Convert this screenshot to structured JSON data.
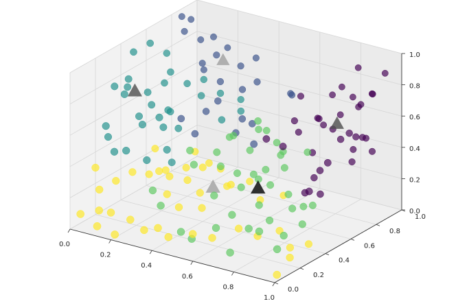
{
  "chart_data": {
    "type": "scatter",
    "title": "",
    "xlabel": "",
    "ylabel": "",
    "zlabel": "",
    "xlim": [
      0,
      1
    ],
    "ylim": [
      0,
      1
    ],
    "zlim": [
      0,
      1
    ],
    "x_ticks": [
      "0.0",
      "0.2",
      "0.4",
      "0.6",
      "0.8",
      "1.0"
    ],
    "y_ticks": [
      "0.0",
      "0.2",
      "0.4",
      "0.6",
      "0.8",
      "1.0"
    ],
    "z_ticks": [
      "0.0",
      "0.2",
      "0.4",
      "0.6",
      "0.8",
      "1.0"
    ],
    "grid": true,
    "legend": "none",
    "colors": {
      "cluster_0": "#440154",
      "cluster_1": "#3b528b",
      "cluster_2": "#21918c",
      "cluster_3": "#5ec962",
      "cluster_4": "#fde725",
      "pane_floor": "#f0f0f0",
      "pane_wall_left": "#f2f2f2",
      "pane_wall_back": "#ebebeb",
      "grid": "#d6d6d6",
      "centroid_light": "#a0a0a0",
      "centroid_mid": "#4d4d4d",
      "centroid_dark": "#000000"
    },
    "centroids": [
      {
        "cluster": 0,
        "x": 0.92,
        "y": 0.62,
        "z": 0.7,
        "shade": "centroid_mid"
      },
      {
        "cluster": 1,
        "x": 0.22,
        "y": 0.85,
        "z": 0.76,
        "shade": "centroid_light"
      },
      {
        "cluster": 2,
        "x": 0.05,
        "y": 0.43,
        "z": 0.7,
        "shade": "centroid_mid"
      },
      {
        "cluster": 3,
        "x": 0.72,
        "y": 0.32,
        "z": 0.36,
        "shade": "centroid_dark"
      },
      {
        "cluster": 4,
        "x": 0.5,
        "y": 0.32,
        "z": 0.29,
        "shade": "centroid_light"
      }
    ],
    "series": [
      {
        "cluster": 0,
        "points": [
          [
            0.62,
            0.95,
            0.48
          ],
          [
            0.68,
            0.97,
            0.64
          ],
          [
            0.72,
            0.98,
            0.7
          ],
          [
            0.78,
            0.97,
            0.66
          ],
          [
            0.82,
            0.95,
            0.62
          ],
          [
            0.88,
            0.96,
            0.72
          ],
          [
            0.95,
            0.95,
            0.88
          ],
          [
            0.9,
            0.88,
            0.48
          ],
          [
            0.85,
            0.86,
            0.4
          ],
          [
            0.92,
            0.82,
            0.52
          ],
          [
            0.98,
            0.8,
            0.46
          ],
          [
            0.9,
            0.77,
            0.38
          ],
          [
            0.95,
            0.72,
            0.58
          ],
          [
            0.8,
            0.78,
            0.55
          ],
          [
            0.72,
            0.8,
            0.58
          ],
          [
            0.6,
            0.85,
            0.66
          ],
          [
            0.75,
            0.7,
            0.42
          ],
          [
            0.65,
            0.72,
            0.58
          ],
          [
            0.95,
            0.6,
            0.62
          ],
          [
            0.98,
            0.62,
            0.66
          ],
          [
            0.88,
            0.55,
            0.42
          ],
          [
            0.82,
            0.6,
            0.33
          ],
          [
            0.9,
            0.52,
            0.29
          ],
          [
            0.85,
            0.48,
            0.3
          ],
          [
            0.98,
            0.45,
            0.55
          ],
          [
            0.92,
            0.4,
            0.37
          ],
          [
            0.78,
            0.42,
            0.6
          ],
          [
            0.68,
            0.45,
            0.6
          ],
          [
            0.85,
            0.92,
            0.66
          ],
          [
            0.75,
            0.92,
            0.56
          ],
          [
            0.68,
            0.9,
            0.48
          ],
          [
            0.8,
            0.98,
            0.85
          ],
          [
            0.92,
            0.9,
            0.76
          ],
          [
            0.62,
            0.8,
            0.46
          ]
        ]
      },
      {
        "cluster": 1,
        "points": [
          [
            0.0,
            0.88,
            0.95
          ],
          [
            0.02,
            0.92,
            0.92
          ],
          [
            0.05,
            0.82,
            0.9
          ],
          [
            0.12,
            0.86,
            0.66
          ],
          [
            0.18,
            0.84,
            0.9
          ],
          [
            0.25,
            0.75,
            0.85
          ],
          [
            0.4,
            0.82,
            0.85
          ],
          [
            0.35,
            0.78,
            0.8
          ],
          [
            0.55,
            0.85,
            0.66
          ],
          [
            0.6,
            0.78,
            0.7
          ],
          [
            0.48,
            0.7,
            0.78
          ],
          [
            0.42,
            0.68,
            0.72
          ],
          [
            0.3,
            0.7,
            0.72
          ],
          [
            0.15,
            0.8,
            0.74
          ],
          [
            0.08,
            0.9,
            0.82
          ],
          [
            0.18,
            0.95,
            0.78
          ],
          [
            0.28,
            0.62,
            0.56
          ],
          [
            0.35,
            0.6,
            0.66
          ],
          [
            0.45,
            0.58,
            0.5
          ],
          [
            0.5,
            0.55,
            0.62
          ],
          [
            0.58,
            0.5,
            0.64
          ],
          [
            0.65,
            0.4,
            0.58
          ],
          [
            0.3,
            0.5,
            0.48
          ],
          [
            0.22,
            0.52,
            0.54
          ]
        ]
      },
      {
        "cluster": 2,
        "points": [
          [
            0.0,
            0.35,
            0.75
          ],
          [
            0.02,
            0.42,
            0.72
          ],
          [
            0.05,
            0.38,
            0.8
          ],
          [
            0.08,
            0.3,
            0.75
          ],
          [
            0.1,
            0.45,
            0.7
          ],
          [
            0.12,
            0.35,
            0.6
          ],
          [
            0.15,
            0.4,
            0.66
          ],
          [
            0.18,
            0.28,
            0.6
          ],
          [
            0.2,
            0.45,
            0.62
          ],
          [
            0.22,
            0.38,
            0.55
          ],
          [
            0.25,
            0.3,
            0.66
          ],
          [
            0.0,
            0.5,
            0.9
          ],
          [
            0.05,
            0.55,
            0.95
          ],
          [
            0.1,
            0.6,
            0.88
          ],
          [
            0.15,
            0.55,
            0.8
          ],
          [
            0.2,
            0.6,
            0.72
          ],
          [
            0.25,
            0.65,
            0.74
          ],
          [
            0.3,
            0.55,
            0.7
          ],
          [
            0.35,
            0.62,
            0.7
          ],
          [
            0.4,
            0.7,
            0.64
          ],
          [
            0.02,
            0.25,
            0.55
          ],
          [
            0.0,
            0.3,
            0.45
          ],
          [
            0.08,
            0.22,
            0.42
          ],
          [
            0.15,
            0.2,
            0.46
          ],
          [
            0.22,
            0.25,
            0.4
          ],
          [
            0.28,
            0.35,
            0.36
          ],
          [
            0.3,
            0.28,
            0.48
          ],
          [
            0.25,
            0.45,
            0.52
          ],
          [
            0.18,
            0.5,
            0.58
          ],
          [
            0.12,
            0.55,
            0.72
          ],
          [
            0.4,
            0.55,
            0.58
          ],
          [
            0.45,
            0.62,
            0.62
          ]
        ]
      },
      {
        "cluster": 3,
        "points": [
          [
            0.5,
            0.45,
            0.55
          ],
          [
            0.55,
            0.4,
            0.6
          ],
          [
            0.6,
            0.45,
            0.5
          ],
          [
            0.65,
            0.5,
            0.62
          ],
          [
            0.58,
            0.55,
            0.58
          ],
          [
            0.62,
            0.48,
            0.68
          ],
          [
            0.7,
            0.5,
            0.56
          ],
          [
            0.75,
            0.45,
            0.52
          ],
          [
            0.8,
            0.4,
            0.48
          ],
          [
            0.72,
            0.38,
            0.45
          ],
          [
            0.68,
            0.35,
            0.42
          ],
          [
            0.78,
            0.32,
            0.4
          ],
          [
            0.85,
            0.35,
            0.35
          ],
          [
            0.9,
            0.3,
            0.3
          ],
          [
            0.95,
            0.38,
            0.3
          ],
          [
            0.88,
            0.42,
            0.25
          ],
          [
            0.82,
            0.25,
            0.22
          ],
          [
            0.75,
            0.28,
            0.28
          ],
          [
            0.65,
            0.3,
            0.35
          ],
          [
            0.6,
            0.35,
            0.4
          ],
          [
            0.55,
            0.3,
            0.45
          ],
          [
            0.5,
            0.35,
            0.5
          ],
          [
            0.45,
            0.25,
            0.45
          ],
          [
            0.4,
            0.3,
            0.5
          ],
          [
            0.58,
            0.2,
            0.32
          ],
          [
            0.68,
            0.18,
            0.24
          ],
          [
            0.78,
            0.15,
            0.2
          ],
          [
            0.85,
            0.12,
            0.22
          ],
          [
            0.92,
            0.2,
            0.18
          ],
          [
            0.98,
            0.25,
            0.25
          ],
          [
            0.62,
            0.15,
            0.15
          ],
          [
            0.48,
            0.1,
            0.1
          ],
          [
            0.35,
            0.15,
            0.2
          ],
          [
            0.28,
            0.2,
            0.25
          ],
          [
            0.52,
            0.12,
            0.06
          ],
          [
            0.72,
            0.1,
            0.05
          ],
          [
            0.95,
            0.1,
            0.15
          ],
          [
            0.66,
            0.42,
            0.35
          ],
          [
            0.7,
            0.55,
            0.48
          ],
          [
            0.85,
            0.5,
            0.55
          ]
        ]
      },
      {
        "cluster": 4,
        "points": [
          [
            0.3,
            0.3,
            0.3
          ],
          [
            0.35,
            0.35,
            0.35
          ],
          [
            0.4,
            0.28,
            0.32
          ],
          [
            0.45,
            0.32,
            0.4
          ],
          [
            0.5,
            0.38,
            0.38
          ],
          [
            0.55,
            0.35,
            0.3
          ],
          [
            0.6,
            0.3,
            0.35
          ],
          [
            0.48,
            0.25,
            0.28
          ],
          [
            0.52,
            0.2,
            0.22
          ],
          [
            0.42,
            0.18,
            0.2
          ],
          [
            0.35,
            0.2,
            0.25
          ],
          [
            0.28,
            0.25,
            0.35
          ],
          [
            0.25,
            0.35,
            0.3
          ],
          [
            0.2,
            0.3,
            0.28
          ],
          [
            0.15,
            0.25,
            0.3
          ],
          [
            0.1,
            0.2,
            0.25
          ],
          [
            0.05,
            0.15,
            0.2
          ],
          [
            0.0,
            0.2,
            0.3
          ],
          [
            0.08,
            0.1,
            0.1
          ],
          [
            0.15,
            0.08,
            0.12
          ],
          [
            0.22,
            0.12,
            0.08
          ],
          [
            0.3,
            0.1,
            0.05
          ],
          [
            0.38,
            0.08,
            0.1
          ],
          [
            0.45,
            0.05,
            0.08
          ],
          [
            0.55,
            0.08,
            0.12
          ],
          [
            0.62,
            0.12,
            0.1
          ],
          [
            0.7,
            0.2,
            0.15
          ],
          [
            0.78,
            0.22,
            0.12
          ],
          [
            0.85,
            0.28,
            0.15
          ],
          [
            0.92,
            0.25,
            0.08
          ],
          [
            0.98,
            0.3,
            0.1
          ],
          [
            0.95,
            0.2,
            0.05
          ],
          [
            0.02,
            0.05,
            0.08
          ],
          [
            0.12,
            0.02,
            0.05
          ],
          [
            0.2,
            0.03,
            0.02
          ],
          [
            0.65,
            0.45,
            0.2
          ],
          [
            0.72,
            0.52,
            0.22
          ],
          [
            0.58,
            0.48,
            0.28
          ],
          [
            0.4,
            0.45,
            0.35
          ],
          [
            0.35,
            0.42,
            0.42
          ],
          [
            0.98,
            0.05,
            0.02
          ],
          [
            0.18,
            0.38,
            0.4
          ]
        ]
      }
    ]
  }
}
